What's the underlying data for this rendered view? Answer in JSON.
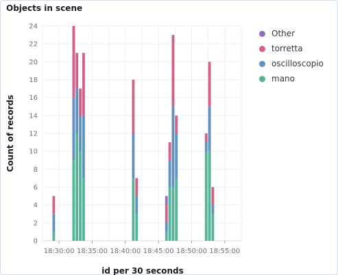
{
  "panel": {
    "title": "Objects in scene"
  },
  "chart_data": {
    "type": "bar",
    "stacked": true,
    "xlabel": "id per 30 seconds",
    "ylabel": "Count of records",
    "ylim": [
      0,
      24
    ],
    "yticks": [
      0,
      2,
      4,
      6,
      8,
      10,
      12,
      14,
      16,
      18,
      20,
      22,
      24
    ],
    "x_ticks": [
      "18:30:00",
      "18:35:00",
      "18:40:00",
      "18:45:00",
      "18:50:00",
      "18:55:00"
    ],
    "x_domain_minutes": [
      27.5,
      57.5
    ],
    "bucket_seconds": 30,
    "grid": true,
    "legend_position": "right",
    "x": [
      "18:29:00",
      "18:32:00",
      "18:32:30",
      "18:33:00",
      "18:33:30",
      "18:41:00",
      "18:41:30",
      "18:46:00",
      "18:46:30",
      "18:47:00",
      "18:47:30",
      "18:52:00",
      "18:52:30",
      "18:53:00"
    ],
    "series": [
      {
        "name": "Other",
        "color": "#9170b8",
        "values": [
          0,
          0,
          0,
          0,
          0,
          0,
          0,
          1,
          0,
          0,
          0,
          0,
          0,
          0
        ]
      },
      {
        "name": "torretta",
        "color": "#d36086",
        "values": [
          2,
          8,
          4,
          3,
          7,
          6,
          2,
          2,
          2,
          8,
          2,
          1,
          5,
          2
        ]
      },
      {
        "name": "oscilloscopio",
        "color": "#6092c0",
        "values": [
          2,
          7,
          5,
          4,
          7,
          5,
          2,
          1,
          3,
          9,
          5,
          1,
          5,
          1
        ]
      },
      {
        "name": "mano",
        "color": "#54b399",
        "values": [
          1,
          9,
          12,
          10,
          7,
          7,
          3,
          1,
          6,
          6,
          7,
          10,
          10,
          3
        ]
      }
    ]
  }
}
